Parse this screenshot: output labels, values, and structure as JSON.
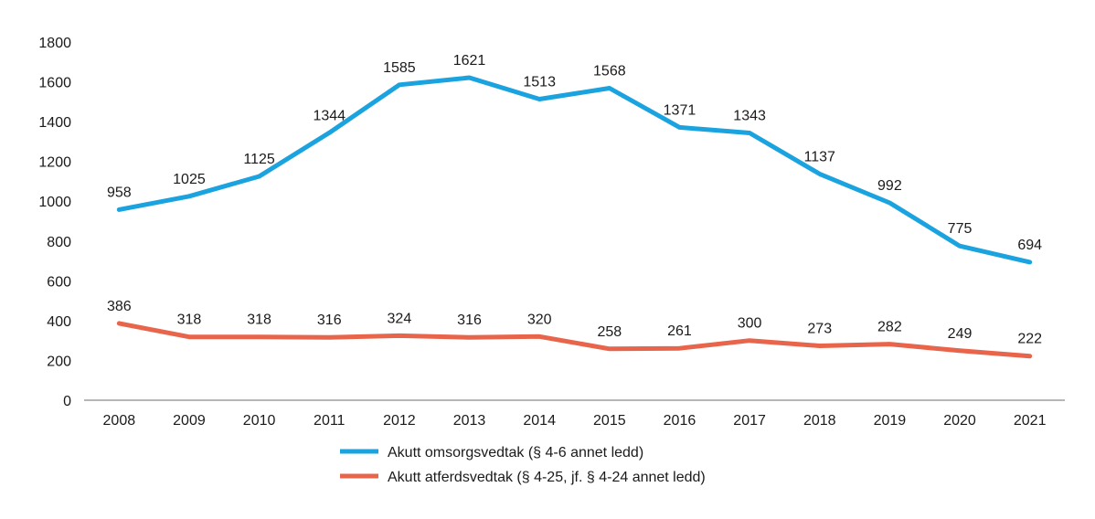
{
  "chart_data": {
    "type": "line",
    "x": [
      "2008",
      "2009",
      "2010",
      "2011",
      "2012",
      "2013",
      "2014",
      "2015",
      "2016",
      "2017",
      "2018",
      "2019",
      "2020",
      "2021"
    ],
    "ylim": [
      0,
      1800
    ],
    "yticks": [
      0,
      200,
      400,
      600,
      800,
      1000,
      1200,
      1400,
      1600,
      1800
    ],
    "grid": false,
    "legend_position": "bottom-center",
    "series": [
      {
        "name": "Akutt omsorgsvedtak (§ 4-6 annet ledd)",
        "color": "#1aa3df",
        "values": [
          958,
          1025,
          1125,
          1344,
          1585,
          1621,
          1513,
          1568,
          1371,
          1343,
          1137,
          992,
          775,
          694
        ]
      },
      {
        "name": "Akutt atferdsvedtak (§ 4-25, jf. § 4-24 annet ledd)",
        "color": "#e8644a",
        "values": [
          386,
          318,
          318,
          316,
          324,
          316,
          320,
          258,
          261,
          300,
          273,
          282,
          249,
          222
        ]
      }
    ]
  }
}
